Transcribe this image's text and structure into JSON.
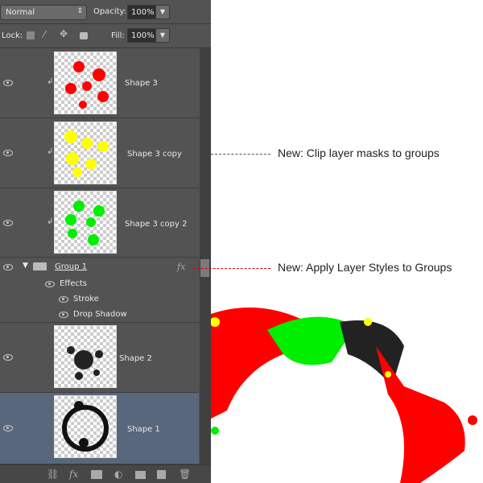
{
  "options": {
    "blend_mode": "Normal",
    "opacity_label": "Opacity:",
    "opacity": "100%",
    "lock_label": "Lock:",
    "fill_label": "Fill:",
    "fill": "100%"
  },
  "layers": [
    {
      "name": "Shape 3",
      "color": "#ff0000",
      "clipped": true
    },
    {
      "name": "Shape 3 copy",
      "color": "#ffff00",
      "clipped": true
    },
    {
      "name": "Shape 3 copy 2",
      "color": "#00ee00",
      "clipped": true
    },
    {
      "name": "Group 1",
      "fx": "fx",
      "effects_label": "Effects",
      "effects": [
        "Stroke",
        "Drop Shadow"
      ]
    },
    {
      "name": "Shape 2",
      "color": "#222222"
    },
    {
      "name": "Shape 1",
      "color": "#111111",
      "selected": true
    }
  ],
  "annotations": [
    "New: Clip layer masks to groups",
    "New: Apply Layer Styles to Groups"
  ],
  "colors": {
    "panel": "#535353",
    "selected": "#58677c",
    "annotation_line": "#cc0000"
  },
  "bottom_icons": [
    "link-icon",
    "fx-icon",
    "mask-icon",
    "adjustment-icon",
    "folder-icon",
    "new-layer-icon",
    "trash-icon"
  ]
}
